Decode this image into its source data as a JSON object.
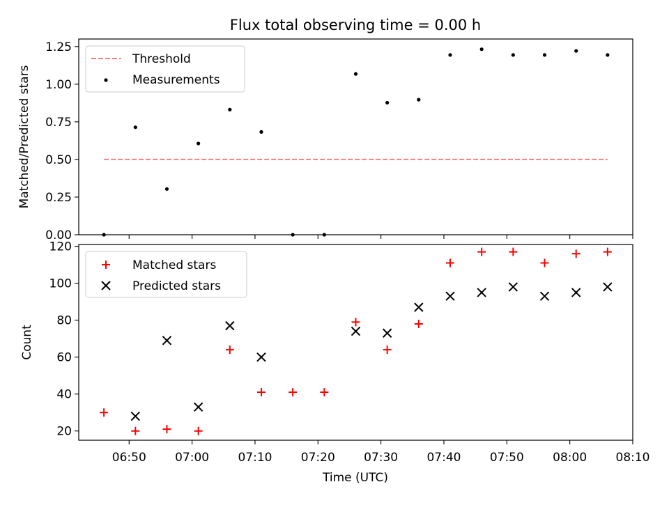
{
  "title": "Flux total observing time = 0.00 h",
  "chart_data": [
    {
      "type": "scatter",
      "ylabel": "Matched/Predicted stars",
      "ylim": [
        0,
        1.3
      ],
      "yticks": [
        0.0,
        0.25,
        0.5,
        0.75,
        1.0,
        1.25
      ],
      "ytick_labels": [
        "0.00",
        "0.25",
        "0.50",
        "0.75",
        "1.00",
        "1.25"
      ],
      "xlim": [
        "06:42",
        "08:10"
      ],
      "legend_position": "upper-left",
      "series": [
        {
          "name": "Threshold",
          "kind": "dashed-line",
          "color": "#ff7f7f",
          "x": [
            "06:46",
            "08:06"
          ],
          "y": [
            0.5,
            0.5
          ]
        },
        {
          "name": "Measurements",
          "kind": "dot",
          "color": "#000000",
          "x": [
            "06:46",
            "06:51",
            "06:56",
            "07:01",
            "07:06",
            "07:11",
            "07:16",
            "07:21",
            "07:26",
            "07:31",
            "07:36",
            "07:41",
            "07:46",
            "07:51",
            "07:56",
            "08:01",
            "08:06"
          ],
          "y": [
            0.0,
            0.714,
            0.304,
            0.606,
            0.831,
            0.683,
            0.0,
            0.0,
            1.068,
            0.877,
            0.897,
            1.194,
            1.232,
            1.194,
            1.194,
            1.221,
            1.194
          ]
        }
      ]
    },
    {
      "type": "scatter",
      "xlabel": "Time (UTC)",
      "ylabel": "Count",
      "ylim": [
        15,
        121
      ],
      "yticks": [
        20,
        40,
        60,
        80,
        100,
        120
      ],
      "xlim": [
        "06:42",
        "08:10"
      ],
      "xticks": [
        "06:50",
        "07:00",
        "07:10",
        "07:20",
        "07:30",
        "07:40",
        "07:50",
        "08:00",
        "08:10"
      ],
      "legend_position": "upper-left",
      "series": [
        {
          "name": "Matched stars",
          "marker": "plus",
          "color": "#ff0000",
          "x": [
            "06:46",
            "06:51",
            "06:56",
            "07:01",
            "07:06",
            "07:11",
            "07:16",
            "07:21",
            "07:26",
            "07:31",
            "07:36",
            "07:41",
            "07:46",
            "07:51",
            "07:56",
            "08:01",
            "08:06"
          ],
          "y": [
            30,
            20,
            21,
            20,
            64,
            41,
            41,
            41,
            79,
            64,
            78,
            111,
            117,
            117,
            111,
            116,
            117
          ]
        },
        {
          "name": "Predicted stars",
          "marker": "x",
          "color": "#000000",
          "x": [
            "06:51",
            "06:56",
            "07:01",
            "07:06",
            "07:11",
            "07:26",
            "07:31",
            "07:36",
            "07:41",
            "07:46",
            "07:51",
            "07:56",
            "08:01",
            "08:06"
          ],
          "y": [
            28,
            69,
            33,
            77,
            60,
            74,
            73,
            87,
            93,
            95,
            98,
            93,
            95,
            98
          ]
        }
      ]
    }
  ]
}
